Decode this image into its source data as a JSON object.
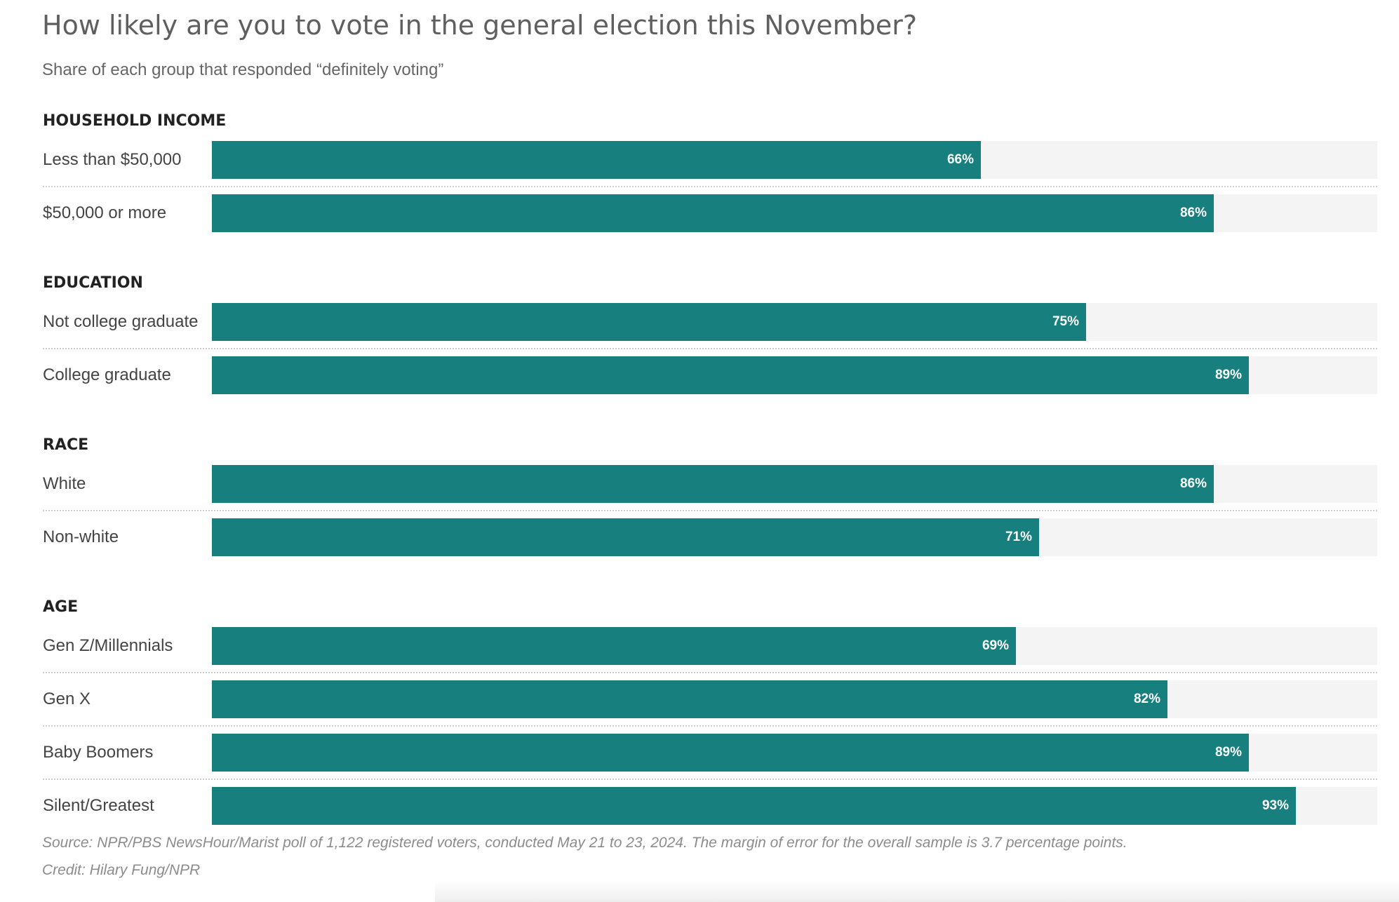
{
  "chart_data": {
    "type": "bar",
    "orientation": "horizontal",
    "title": "How likely are you to vote in the general election this November?",
    "subtitle": "Share of each group that responded “definitely voting”",
    "xlim": [
      0,
      100
    ],
    "unit": "%",
    "groups": [
      {
        "name": "HOUSEHOLD INCOME",
        "rows": [
          {
            "label": "Less than $50,000",
            "value": 66,
            "display": "66%"
          },
          {
            "label": "$50,000 or more",
            "value": 86,
            "display": "86%"
          }
        ]
      },
      {
        "name": "EDUCATION",
        "rows": [
          {
            "label": "Not college graduate",
            "value": 75,
            "display": "75%"
          },
          {
            "label": "College graduate",
            "value": 89,
            "display": "89%"
          }
        ]
      },
      {
        "name": "RACE",
        "rows": [
          {
            "label": "White",
            "value": 86,
            "display": "86%"
          },
          {
            "label": "Non-white",
            "value": 71,
            "display": "71%"
          }
        ]
      },
      {
        "name": "AGE",
        "rows": [
          {
            "label": "Gen Z/Millennials",
            "value": 69,
            "display": "69%"
          },
          {
            "label": "Gen X",
            "value": 82,
            "display": "82%"
          },
          {
            "label": "Baby Boomers",
            "value": 89,
            "display": "89%"
          },
          {
            "label": "Silent/Greatest",
            "value": 93,
            "display": "93%"
          }
        ]
      }
    ],
    "colors": {
      "bar": "#17807e",
      "track": "#f4f4f4"
    }
  },
  "footer": {
    "source": "Source: NPR/PBS NewsHour/Marist poll of 1,122 registered voters, conducted May 21 to 23, 2024. The margin of error for the overall sample is 3.7 percentage points.",
    "credit": "Credit: Hilary Fung/NPR"
  }
}
